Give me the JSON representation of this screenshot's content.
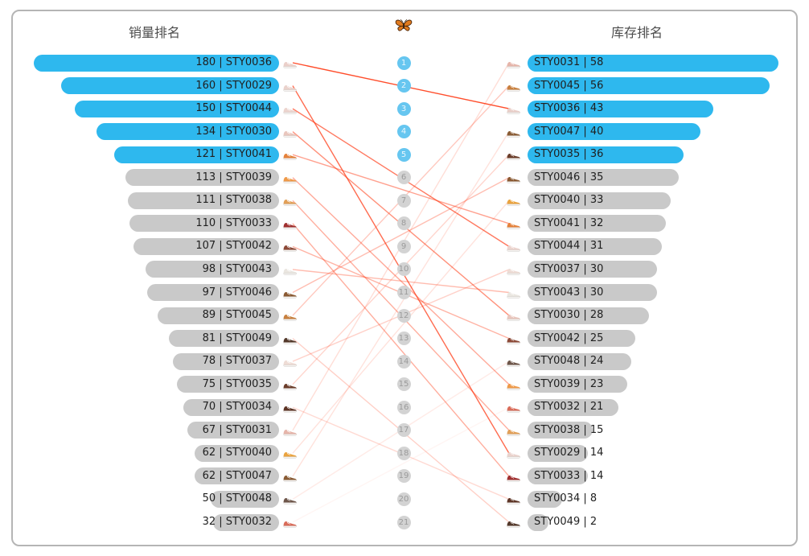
{
  "header": {
    "left_title": "销量排名",
    "right_title": "库存排名",
    "center_icon": "butterfly-icon"
  },
  "chart_data": {
    "type": "slope-ranking",
    "left_axis": {
      "title": "销量排名",
      "metric": "sales",
      "max": 180
    },
    "right_axis": {
      "title": "库存排名",
      "metric": "inventory",
      "max": 58
    },
    "highlight_top_n": 5,
    "ranks": [
      1,
      2,
      3,
      4,
      5,
      6,
      7,
      8,
      9,
      10,
      11,
      12,
      13,
      14,
      15,
      16,
      17,
      18,
      19,
      20,
      21
    ],
    "left_items": [
      {
        "rank": 1,
        "value": 180,
        "code": "STY0036",
        "label": "180 | STY0036"
      },
      {
        "rank": 2,
        "value": 160,
        "code": "STY0029",
        "label": "160 | STY0029"
      },
      {
        "rank": 3,
        "value": 150,
        "code": "STY0044",
        "label": "150 | STY0044"
      },
      {
        "rank": 4,
        "value": 134,
        "code": "STY0030",
        "label": "134 | STY0030"
      },
      {
        "rank": 5,
        "value": 121,
        "code": "STY0041",
        "label": "121 | STY0041"
      },
      {
        "rank": 6,
        "value": 113,
        "code": "STY0039",
        "label": "113 | STY0039"
      },
      {
        "rank": 7,
        "value": 111,
        "code": "STY0038",
        "label": "111 | STY0038"
      },
      {
        "rank": 8,
        "value": 110,
        "code": "STY0033",
        "label": "110 | STY0033"
      },
      {
        "rank": 9,
        "value": 107,
        "code": "STY0042",
        "label": "107 | STY0042"
      },
      {
        "rank": 10,
        "value": 98,
        "code": "STY0043",
        "label": "98 | STY0043"
      },
      {
        "rank": 11,
        "value": 97,
        "code": "STY0046",
        "label": "97 | STY0046"
      },
      {
        "rank": 12,
        "value": 89,
        "code": "STY0045",
        "label": "89 | STY0045"
      },
      {
        "rank": 13,
        "value": 81,
        "code": "STY0049",
        "label": "81 | STY0049"
      },
      {
        "rank": 14,
        "value": 78,
        "code": "STY0037",
        "label": "78 | STY0037"
      },
      {
        "rank": 15,
        "value": 75,
        "code": "STY0035",
        "label": "75 | STY0035"
      },
      {
        "rank": 16,
        "value": 70,
        "code": "STY0034",
        "label": "70 | STY0034"
      },
      {
        "rank": 17,
        "value": 67,
        "code": "STY0031",
        "label": "67 | STY0031"
      },
      {
        "rank": 18,
        "value": 62,
        "code": "STY0040",
        "label": "62 | STY0040"
      },
      {
        "rank": 19,
        "value": 62,
        "code": "STY0047",
        "label": "62 | STY0047"
      },
      {
        "rank": 20,
        "value": 50,
        "code": "STY0048",
        "label": "50 | STY0048"
      },
      {
        "rank": 21,
        "value": 32,
        "code": "STY0032",
        "label": "32 | STY0032"
      }
    ],
    "right_items": [
      {
        "rank": 1,
        "value": 58,
        "code": "STY0031",
        "label": "STY0031 | 58"
      },
      {
        "rank": 2,
        "value": 56,
        "code": "STY0045",
        "label": "STY0045 | 56"
      },
      {
        "rank": 3,
        "value": 43,
        "code": "STY0036",
        "label": "STY0036 | 43"
      },
      {
        "rank": 4,
        "value": 40,
        "code": "STY0047",
        "label": "STY0047 | 40"
      },
      {
        "rank": 5,
        "value": 36,
        "code": "STY0035",
        "label": "STY0035 | 36"
      },
      {
        "rank": 6,
        "value": 35,
        "code": "STY0046",
        "label": "STY0046 | 35"
      },
      {
        "rank": 7,
        "value": 33,
        "code": "STY0040",
        "label": "STY0040 | 33"
      },
      {
        "rank": 8,
        "value": 32,
        "code": "STY0041",
        "label": "STY0041 | 32"
      },
      {
        "rank": 9,
        "value": 31,
        "code": "STY0044",
        "label": "STY0044 | 31"
      },
      {
        "rank": 10,
        "value": 30,
        "code": "STY0037",
        "label": "STY0037 | 30"
      },
      {
        "rank": 11,
        "value": 30,
        "code": "STY0043",
        "label": "STY0043 | 30"
      },
      {
        "rank": 12,
        "value": 28,
        "code": "STY0030",
        "label": "STY0030 | 28"
      },
      {
        "rank": 13,
        "value": 25,
        "code": "STY0042",
        "label": "STY0042 | 25"
      },
      {
        "rank": 14,
        "value": 24,
        "code": "STY0048",
        "label": "STY0048 | 24"
      },
      {
        "rank": 15,
        "value": 23,
        "code": "STY0039",
        "label": "STY0039 | 23"
      },
      {
        "rank": 16,
        "value": 21,
        "code": "STY0032",
        "label": "STY0032 | 21"
      },
      {
        "rank": 17,
        "value": 15,
        "code": "STY0038",
        "label": "STY0038 | 15"
      },
      {
        "rank": 18,
        "value": 14,
        "code": "STY0029",
        "label": "STY0029 | 14"
      },
      {
        "rank": 19,
        "value": 14,
        "code": "STY0033",
        "label": "STY0033 | 14"
      },
      {
        "rank": 20,
        "value": 8,
        "code": "STY0034",
        "label": "STY0034 | 8"
      },
      {
        "rank": 21,
        "value": 2,
        "code": "STY0049",
        "label": "STY0049 | 2"
      }
    ],
    "links": [
      {
        "code": "STY0036",
        "from_rank": 1,
        "to_rank": 3
      },
      {
        "code": "STY0029",
        "from_rank": 2,
        "to_rank": 18
      },
      {
        "code": "STY0044",
        "from_rank": 3,
        "to_rank": 9
      },
      {
        "code": "STY0030",
        "from_rank": 4,
        "to_rank": 12
      },
      {
        "code": "STY0041",
        "from_rank": 5,
        "to_rank": 8
      },
      {
        "code": "STY0039",
        "from_rank": 6,
        "to_rank": 15
      },
      {
        "code": "STY0038",
        "from_rank": 7,
        "to_rank": 17
      },
      {
        "code": "STY0033",
        "from_rank": 8,
        "to_rank": 19
      },
      {
        "code": "STY0042",
        "from_rank": 9,
        "to_rank": 13
      },
      {
        "code": "STY0043",
        "from_rank": 10,
        "to_rank": 11
      },
      {
        "code": "STY0046",
        "from_rank": 11,
        "to_rank": 6
      },
      {
        "code": "STY0045",
        "from_rank": 12,
        "to_rank": 2
      },
      {
        "code": "STY0049",
        "from_rank": 13,
        "to_rank": 21
      },
      {
        "code": "STY0037",
        "from_rank": 14,
        "to_rank": 10
      },
      {
        "code": "STY0035",
        "from_rank": 15,
        "to_rank": 5
      },
      {
        "code": "STY0034",
        "from_rank": 16,
        "to_rank": 20
      },
      {
        "code": "STY0031",
        "from_rank": 17,
        "to_rank": 1
      },
      {
        "code": "STY0040",
        "from_rank": 18,
        "to_rank": 7
      },
      {
        "code": "STY0047",
        "from_rank": 19,
        "to_rank": 4
      },
      {
        "code": "STY0048",
        "from_rank": 20,
        "to_rank": 14
      },
      {
        "code": "STY0032",
        "from_rank": 21,
        "to_rank": 16
      }
    ],
    "icon_colors": {
      "STY0036": "#eacfc9",
      "STY0029": "#ead2cc",
      "STY0044": "#ecd4ce",
      "STY0030": "#e9c6bd",
      "STY0041": "#e5823b",
      "STY0039": "#ef9a49",
      "STY0038": "#e2a058",
      "STY0033": "#a03030",
      "STY0042": "#8d4a38",
      "STY0043": "#eae6e0",
      "STY0046": "#8a5a33",
      "STY0045": "#c8803f",
      "STY0049": "#53382a",
      "STY0037": "#eedcd5",
      "STY0035": "#6b3d2a",
      "STY0034": "#5e3526",
      "STY0031": "#e6b5aa",
      "STY0040": "#eaa33f",
      "STY0047": "#8a5c35",
      "STY0048": "#6e564a",
      "STY0032": "#d96c5a"
    },
    "colors": {
      "highlight_bar": "#2eb8ee",
      "default_bar": "#c9c9c9",
      "highlight_circle": "#66c6f0",
      "default_circle": "#d3d3d3",
      "highlight_circle_text": "#eaf7fd",
      "default_circle_text": "#9a9a9a",
      "line": "#ff3a14",
      "title_text": "#4d4d4d",
      "bar_text": "#1f1f1f"
    }
  }
}
